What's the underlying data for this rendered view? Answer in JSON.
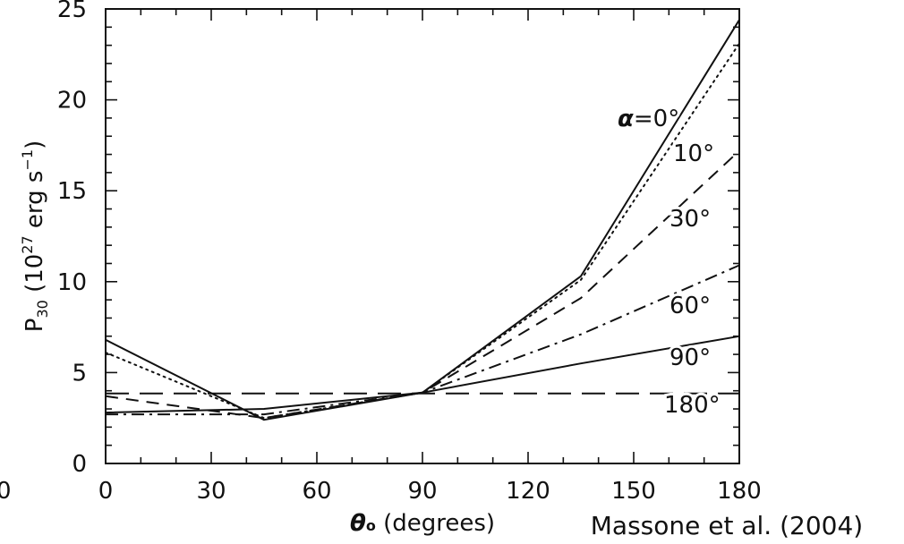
{
  "chart_data": {
    "type": "line",
    "xlabel_symbol": "θ",
    "xlabel_sub": "o",
    "xlabel_text": " (degrees)",
    "ylabel_main": "P",
    "ylabel_sub": "30",
    "ylabel_unit_a": "  (10",
    "ylabel_unit_sup1": "27",
    "ylabel_unit_b": " erg s",
    "ylabel_unit_sup2": "−1",
    "ylabel_unit_c": ")",
    "xlim": [
      0,
      180
    ],
    "ylim": [
      0,
      25
    ],
    "xticks": [
      "0",
      "30",
      "60",
      "90",
      "120",
      "150",
      "180"
    ],
    "yticks": [
      "0",
      "5",
      "10",
      "15",
      "20",
      "25"
    ],
    "stray_left_label": "0",
    "citation": "Massone et al. (2004)",
    "grid": false,
    "legend": "inline labels at right",
    "series": [
      {
        "name": "α=0°",
        "label": "=0°",
        "label_symbol": "α",
        "dash": "solid",
        "x": [
          0,
          45,
          90,
          135,
          180
        ],
        "y": [
          6.8,
          2.4,
          3.9,
          10.3,
          24.4
        ]
      },
      {
        "name": "10°",
        "label": "10°",
        "dash": "dotted",
        "x": [
          0,
          45,
          90,
          135,
          180
        ],
        "y": [
          6.1,
          2.5,
          3.9,
          10.1,
          23.1
        ]
      },
      {
        "name": "30°",
        "label": "30°",
        "dash": "dashed",
        "x": [
          0,
          45,
          90,
          135,
          180
        ],
        "y": [
          3.7,
          2.5,
          3.9,
          9.1,
          17.2
        ]
      },
      {
        "name": "60°",
        "label": "60°",
        "dash": "dashdot",
        "x": [
          0,
          45,
          90,
          135,
          180
        ],
        "y": [
          2.7,
          2.7,
          3.9,
          7.1,
          10.9
        ]
      },
      {
        "name": "90°",
        "label": "90°",
        "dash": "solid",
        "x": [
          0,
          45,
          90,
          135,
          180
        ],
        "y": [
          2.8,
          3.0,
          3.9,
          5.5,
          7.0
        ]
      },
      {
        "name": "180°",
        "label": "180°",
        "dash": "longdash",
        "x": [
          0,
          45,
          90,
          135,
          180
        ],
        "y": [
          3.85,
          3.85,
          3.85,
          3.85,
          3.85
        ]
      }
    ]
  }
}
